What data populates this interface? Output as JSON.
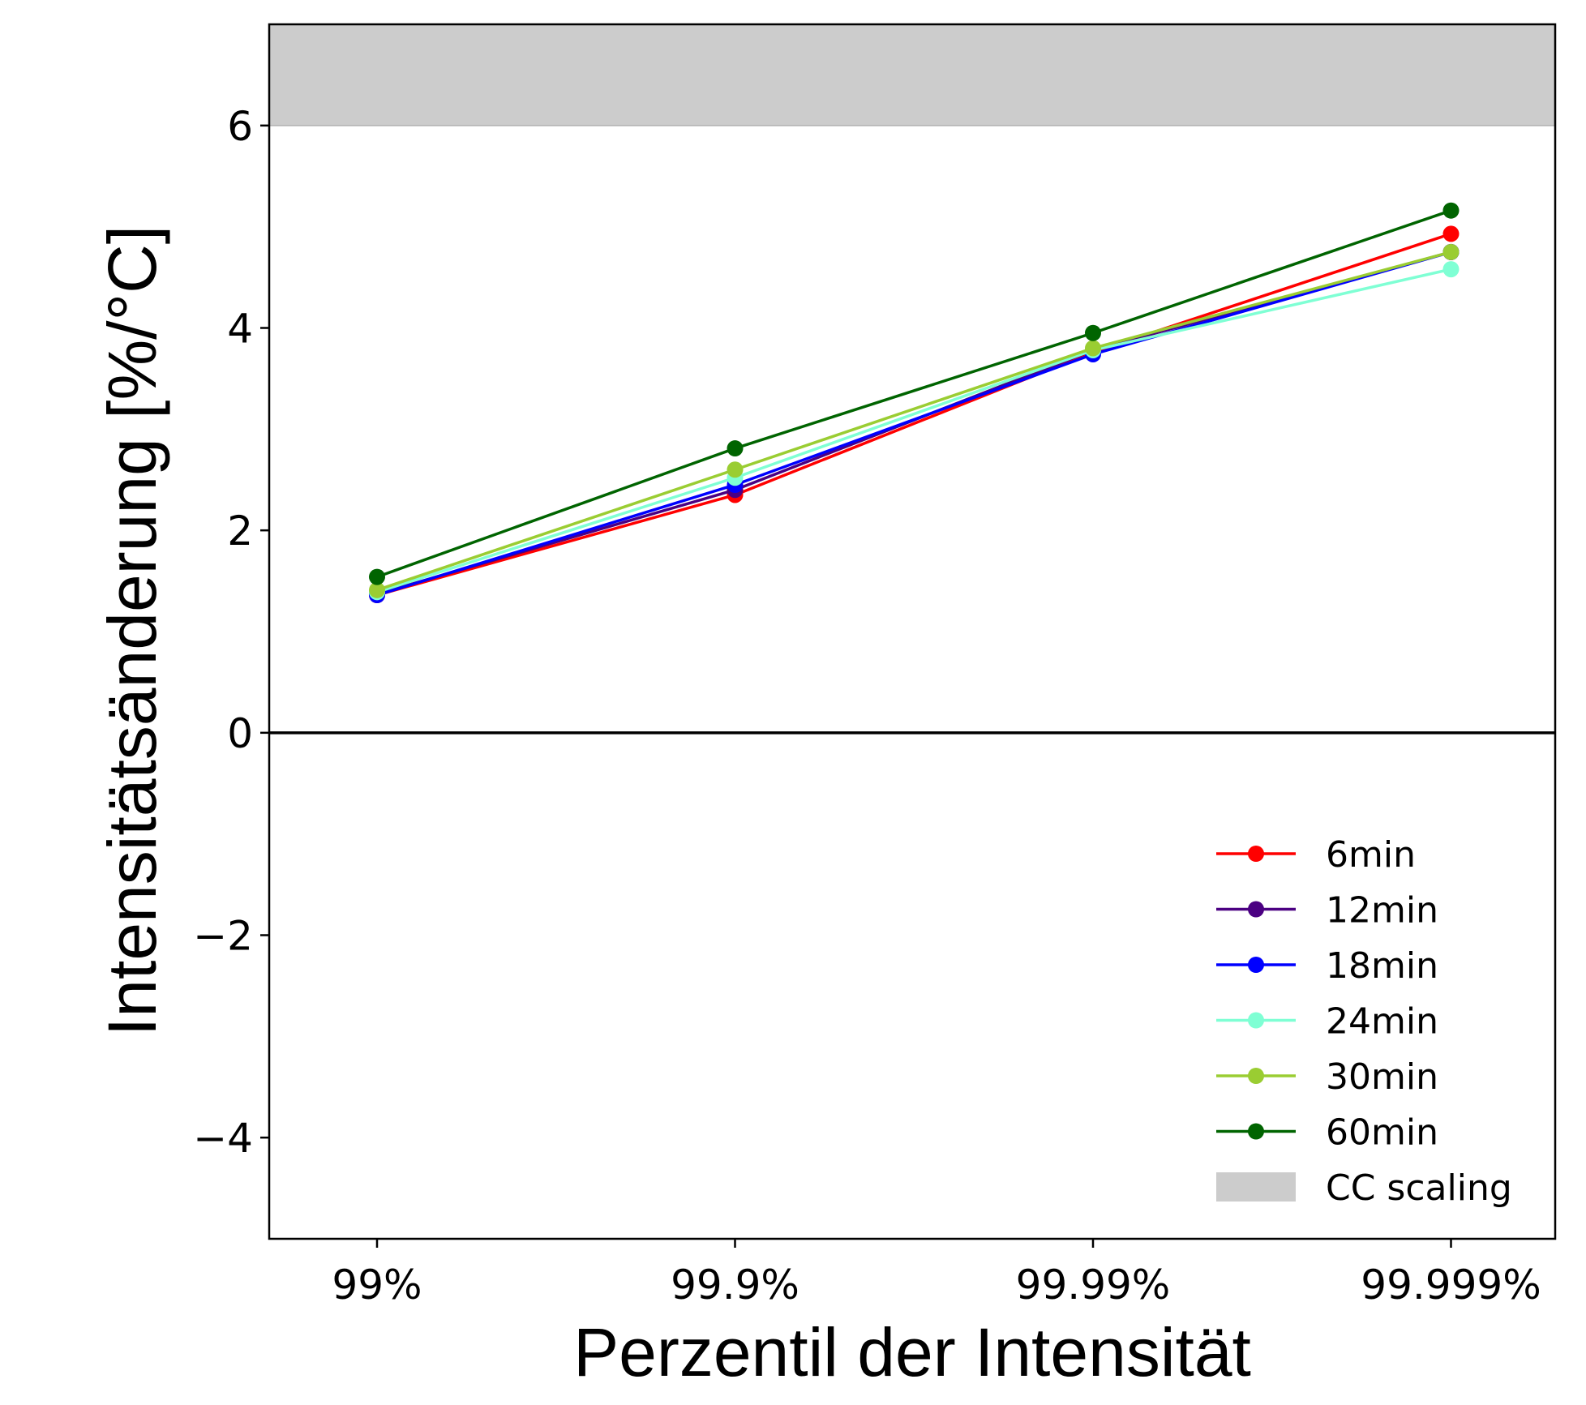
{
  "chart_data": {
    "type": "line",
    "xlabel": "Perzentil der Intensität",
    "ylabel": "Intensitätsänderung [%/°C]",
    "categories": [
      "99%",
      "99.9%",
      "99.99%",
      "99.999%"
    ],
    "ylim": [
      -5,
      7
    ],
    "yticks": [
      -4,
      -2,
      0,
      2,
      4,
      6
    ],
    "ytick_labels": [
      "−4",
      "−2",
      "0",
      "2",
      "4",
      "6"
    ],
    "zero_line": true,
    "grid": false,
    "legend_position": "lower-right",
    "band": {
      "name": "CC scaling",
      "from": 6,
      "to": 7,
      "color": "#cccccc"
    },
    "series": [
      {
        "name": "6min",
        "color": "#ff0000",
        "values": [
          1.36,
          2.35,
          3.76,
          4.93
        ]
      },
      {
        "name": "12min",
        "color": "#4b0082",
        "values": [
          1.37,
          2.4,
          3.78,
          4.75
        ]
      },
      {
        "name": "18min",
        "color": "#0000ff",
        "values": [
          1.36,
          2.45,
          3.74,
          4.75
        ]
      },
      {
        "name": "24min",
        "color": "#7fffd4",
        "values": [
          1.39,
          2.52,
          3.78,
          4.58
        ]
      },
      {
        "name": "30min",
        "color": "#9acd32",
        "values": [
          1.41,
          2.6,
          3.8,
          4.75
        ]
      },
      {
        "name": "60min",
        "color": "#006400",
        "values": [
          1.54,
          2.81,
          3.95,
          5.16
        ]
      }
    ]
  }
}
